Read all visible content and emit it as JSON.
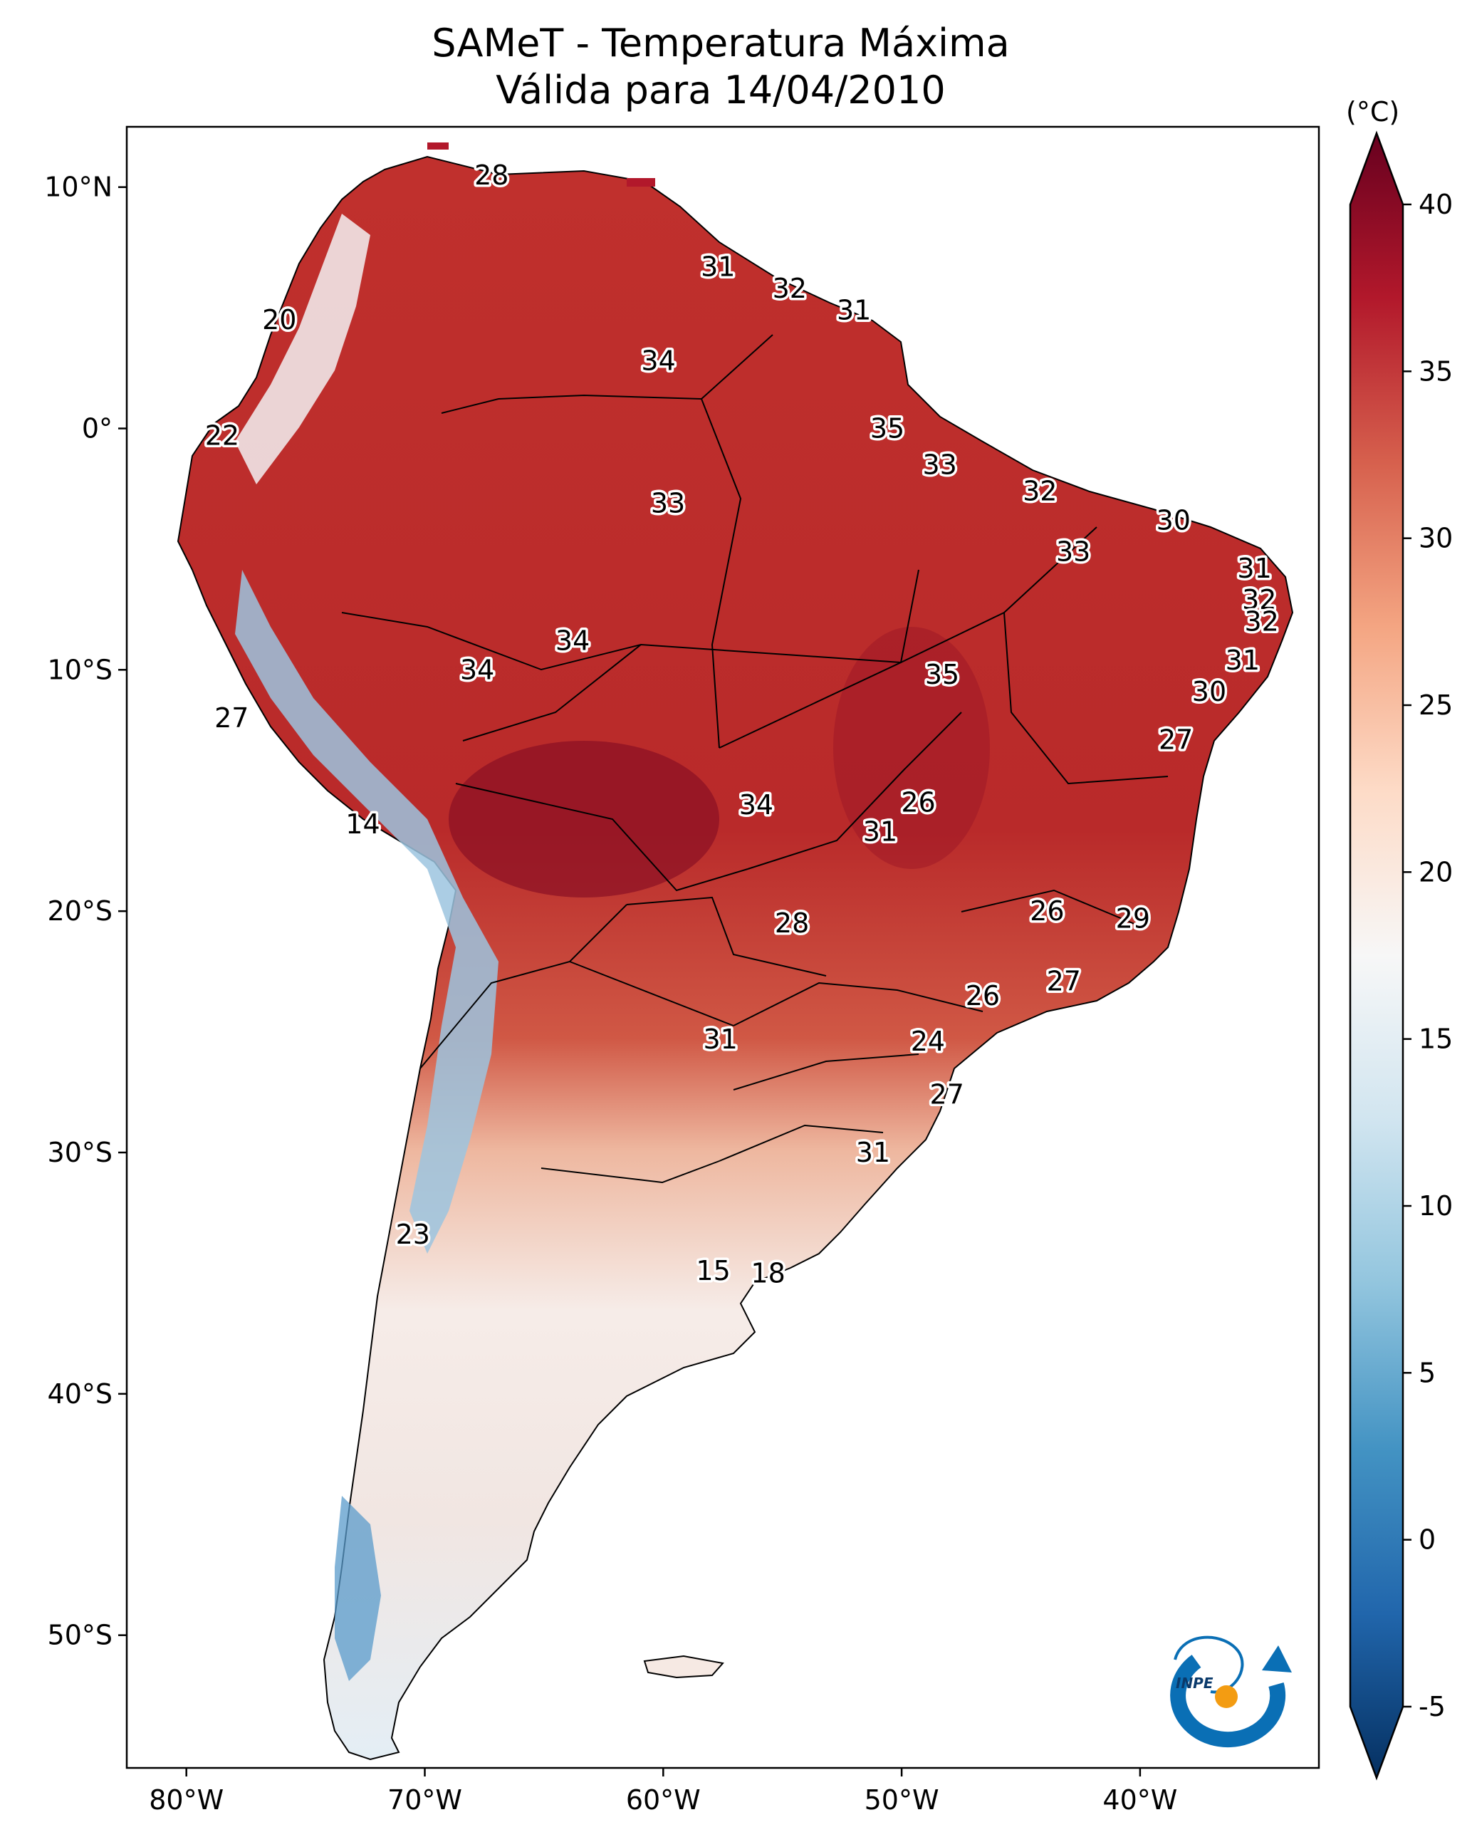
{
  "title": {
    "line1": "SAMeT - Temperatura Máxima",
    "line2": "Válida para 14/04/2010"
  },
  "extent": {
    "lon_min": -82.5,
    "lon_max": -32.5,
    "lat_min": -55.5,
    "lat_max": 12.5
  },
  "axes": {
    "lat_ticks": [
      {
        "lat": 10,
        "label": "10°N"
      },
      {
        "lat": 0,
        "label": "0°"
      },
      {
        "lat": -10,
        "label": "10°S"
      },
      {
        "lat": -20,
        "label": "20°S"
      },
      {
        "lat": -30,
        "label": "30°S"
      },
      {
        "lat": -40,
        "label": "40°S"
      },
      {
        "lat": -50,
        "label": "50°S"
      }
    ],
    "lon_ticks": [
      {
        "lon": -80,
        "label": "80°W"
      },
      {
        "lon": -70,
        "label": "70°W"
      },
      {
        "lon": -60,
        "label": "60°W"
      },
      {
        "lon": -50,
        "label": "50°W"
      },
      {
        "lon": -40,
        "label": "40°W"
      }
    ]
  },
  "colorbar": {
    "unit": "(°C)",
    "min": -5,
    "max": 40,
    "ticks": [
      {
        "value": 40,
        "label": "40"
      },
      {
        "value": 35,
        "label": "35"
      },
      {
        "value": 30,
        "label": "30"
      },
      {
        "value": 25,
        "label": "25"
      },
      {
        "value": 20,
        "label": "20"
      },
      {
        "value": 15,
        "label": "15"
      },
      {
        "value": 10,
        "label": "10"
      },
      {
        "value": 5,
        "label": "5"
      },
      {
        "value": 0,
        "label": "0"
      },
      {
        "value": -5,
        "label": "-5"
      }
    ],
    "colors": [
      "#053061",
      "#2166ac",
      "#4393c3",
      "#92c5de",
      "#d1e5f0",
      "#f7f7f7",
      "#fddbc7",
      "#f4a582",
      "#d6604d",
      "#b2182b",
      "#67001f"
    ]
  },
  "city_values": [
    {
      "lon": -67.2,
      "lat": 10.5,
      "label": "28"
    },
    {
      "lon": -57.7,
      "lat": 6.7,
      "label": "31"
    },
    {
      "lon": -54.7,
      "lat": 5.8,
      "label": "32"
    },
    {
      "lon": -52.0,
      "lat": 4.9,
      "label": "31"
    },
    {
      "lon": -60.2,
      "lat": 2.8,
      "label": "34"
    },
    {
      "lon": -76.1,
      "lat": 4.5,
      "label": "20"
    },
    {
      "lon": -78.5,
      "lat": -0.3,
      "label": "22"
    },
    {
      "lon": -50.6,
      "lat": 0.0,
      "label": "35"
    },
    {
      "lon": -48.4,
      "lat": -1.5,
      "label": "33"
    },
    {
      "lon": -44.2,
      "lat": -2.6,
      "label": "32"
    },
    {
      "lon": -59.8,
      "lat": -3.1,
      "label": "33"
    },
    {
      "lon": -38.6,
      "lat": -3.8,
      "label": "30"
    },
    {
      "lon": -42.8,
      "lat": -5.1,
      "label": "33"
    },
    {
      "lon": -35.2,
      "lat": -5.8,
      "label": "31"
    },
    {
      "lon": -35.0,
      "lat": -7.1,
      "label": "32"
    },
    {
      "lon": -34.9,
      "lat": -8.0,
      "label": "32"
    },
    {
      "lon": -63.8,
      "lat": -8.8,
      "label": "34"
    },
    {
      "lon": -67.8,
      "lat": -10.0,
      "label": "34"
    },
    {
      "lon": -48.3,
      "lat": -10.2,
      "label": "35"
    },
    {
      "lon": -35.7,
      "lat": -9.6,
      "label": "31"
    },
    {
      "lon": -37.1,
      "lat": -10.9,
      "label": "30"
    },
    {
      "lon": -38.5,
      "lat": -12.9,
      "label": "27"
    },
    {
      "lon": -78.1,
      "lat": -12.0,
      "label": "27"
    },
    {
      "lon": -56.1,
      "lat": -15.6,
      "label": "34"
    },
    {
      "lon": -49.3,
      "lat": -15.5,
      "label": "26"
    },
    {
      "lon": -50.9,
      "lat": -16.7,
      "label": "31"
    },
    {
      "lon": -72.6,
      "lat": -16.4,
      "label": "14"
    },
    {
      "lon": -43.9,
      "lat": -20.0,
      "label": "26"
    },
    {
      "lon": -40.3,
      "lat": -20.3,
      "label": "29"
    },
    {
      "lon": -54.6,
      "lat": -20.5,
      "label": "28"
    },
    {
      "lon": -43.2,
      "lat": -22.9,
      "label": "27"
    },
    {
      "lon": -46.6,
      "lat": -23.5,
      "label": "26"
    },
    {
      "lon": -57.6,
      "lat": -25.3,
      "label": "31"
    },
    {
      "lon": -48.9,
      "lat": -25.4,
      "label": "24"
    },
    {
      "lon": -48.1,
      "lat": -27.6,
      "label": "27"
    },
    {
      "lon": -51.2,
      "lat": -30.0,
      "label": "31"
    },
    {
      "lon": -70.5,
      "lat": -33.4,
      "label": "23"
    },
    {
      "lon": -57.9,
      "lat": -34.9,
      "label": "15"
    },
    {
      "lon": -55.6,
      "lat": -35.0,
      "label": "18"
    }
  ],
  "logo": {
    "text": "INPE",
    "colors": [
      "#0a6fb5",
      "#f39c12"
    ]
  }
}
